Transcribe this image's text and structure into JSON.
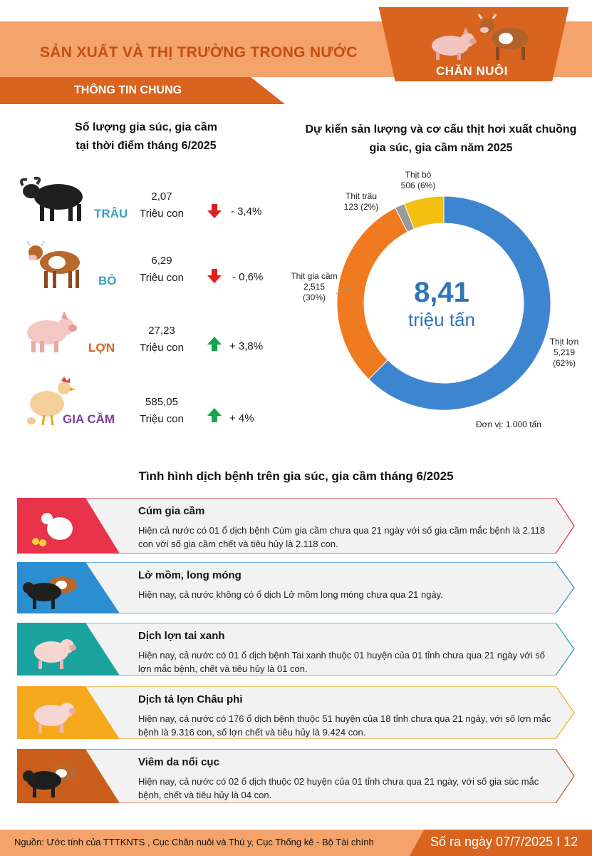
{
  "header": {
    "title": "SẢN XUẤT VÀ THỊ TRƯỜNG TRONG NƯỚC",
    "category": "CHĂN NUÔI",
    "section": "THÔNG TIN CHUNG"
  },
  "herd": {
    "title_line1": "Số lượng gia súc, gia cầm",
    "title_line2": "tại thời điểm tháng 6/2025",
    "items": [
      {
        "name": "TRÂU",
        "value": "2,07",
        "unit": "Triệu con",
        "change": "- 3,4%",
        "direction": "down",
        "color": "#3aa0c4"
      },
      {
        "name": "BÒ",
        "value": "6,29",
        "unit": "Triệu con",
        "change": "- 0,6%",
        "direction": "down",
        "color": "#3aa0c4"
      },
      {
        "name": "LỢN",
        "value": "27,23",
        "unit": "Triệu con",
        "change": "+ 3,8%",
        "direction": "up",
        "color": "#d8641f"
      },
      {
        "name": "GIA CẦM",
        "value": "585,05",
        "unit": "Triệu con",
        "change": "+ 4%",
        "direction": "up",
        "color": "#7b3fa0"
      }
    ]
  },
  "chart_data": {
    "type": "pie",
    "title": "Dự kiến sản lượng và cơ cấu thịt hơi xuất chuồng gia súc, gia cầm năm 2025",
    "center_value": "8,41",
    "center_unit": "triệu tấn",
    "unit_note": "Đơn vị: 1.000 tấn",
    "slices": [
      {
        "name": "Thịt lợn",
        "value": 5219,
        "label": "5,219",
        "pct": "(62%)",
        "color": "#3d86cf"
      },
      {
        "name": "Thịt gia cầm",
        "value": 2515,
        "label": "2,515",
        "pct": "(30%)",
        "color": "#f07a20"
      },
      {
        "name": "Thịt trâu",
        "value": 123,
        "label": "123 (2%)",
        "pct": "",
        "color": "#9a9a9a"
      },
      {
        "name": "Thịt bò",
        "value": 506,
        "label": "506 (6%)",
        "pct": "",
        "color": "#f2c011"
      }
    ]
  },
  "disease": {
    "title": "Tình hình dịch bệnh trên gia súc, gia cầm tháng 6/2025",
    "items": [
      {
        "title": "Cúm gia cầm",
        "text": "Hiện cả nước có 01 ổ dịch bệnh Cúm gia cầm chưa qua 21 ngày với số gia cầm mắc bệnh là 2.118 con với số gia cầm chết và tiêu hủy là 2.118 con.",
        "color": "#e8334a"
      },
      {
        "title": "Lở mồm, long móng",
        "text": "Hiện nay, cả nước không có ổ dịch Lở mồm long móng chưa qua 21 ngày.",
        "color": "#2a8ed0"
      },
      {
        "title": "Dịch lợn tai xanh",
        "text": "Hiện nay, cả nước có 01 ổ dịch bệnh Tai xanh thuộc 01 huyện của 01 tỉnh chưa qua 21 ngày với số lợn mắc bệnh, chết và tiêu hủy là 01 con.",
        "color": "#1ba3a0"
      },
      {
        "title": "Dịch tả lợn Châu phi",
        "text": "Hiện nay, cả nước có 176 ổ dịch bệnh thuộc 51 huyện của 18 tỉnh chưa qua 21 ngày, với số lợn mắc bệnh là 9.316 con, số lợn chết và tiêu hủy là 9.424 con.",
        "color": "#f5a81c"
      },
      {
        "title": "Viêm da nổi cục",
        "text": "Hiện nay, cả nước có 02 ổ dịch thuộc 02 huyện của 01 tỉnh chưa qua 21 ngày, với số gia súc mắc bệnh, chết và tiêu hủy là 04 con.",
        "color": "#c95e1d"
      }
    ]
  },
  "footer": {
    "source": "Nguồn: Ước tính của TTTKNTS , Cục Chăn nuôi và Thú y, Cục Thống kê - Bộ Tài chính",
    "issue": "Số ra ngày 07/7/2025  I 12"
  }
}
